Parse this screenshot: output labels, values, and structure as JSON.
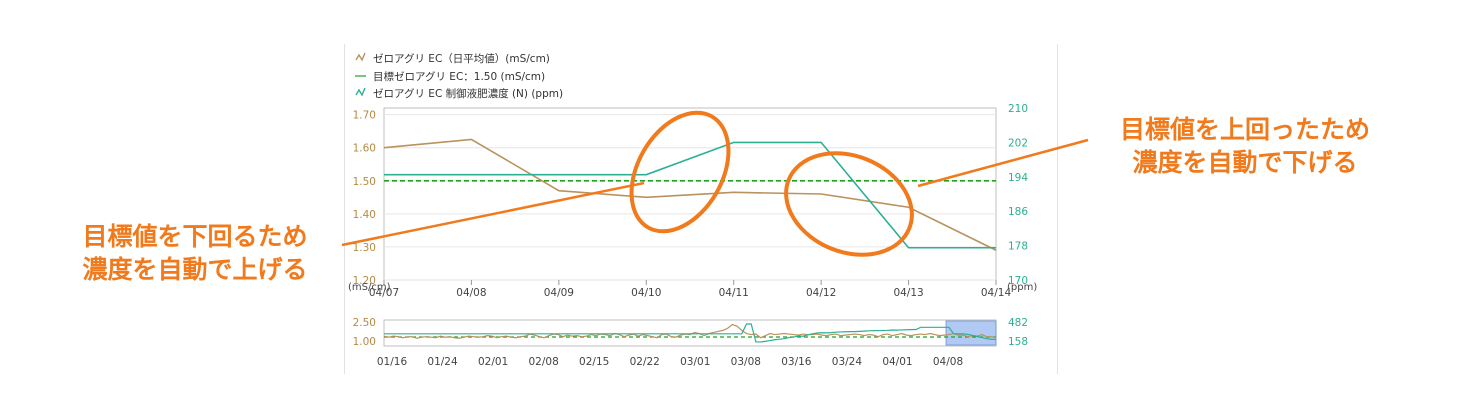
{
  "colors": {
    "ec_daily": "#b9925e",
    "target": "#22a022",
    "control": "#2bb093",
    "left_axis_text": "#b58a46",
    "right_axis_text": "#2bb093",
    "annotation": "#f07a1c",
    "navigator_band": "#8fb3ee"
  },
  "legend": {
    "items": [
      {
        "label": "ゼロアグリ EC（日平均値）(mS/cm)",
        "icon": "line-chart-icon",
        "color": "#b9925e"
      },
      {
        "label": "目標ゼロアグリ EC：1.50 (mS/cm)",
        "icon": "dashed-line-icon",
        "color": "#22a022"
      },
      {
        "label": "ゼロアグリ EC 制御液肥濃度 (N) (ppm)",
        "icon": "line-chart-icon",
        "color": "#2bb093"
      }
    ]
  },
  "annotations": {
    "left_line1": "目標値を下回るため",
    "left_line2": "濃度を自動で上げる",
    "right_line1": "目標値を上回ったため",
    "right_line2": "濃度を自動で下げる"
  },
  "chart_data": [
    {
      "type": "line",
      "x": [
        "04/07",
        "04/08",
        "04/09",
        "04/10",
        "04/11",
        "04/12",
        "04/13",
        "04/14"
      ],
      "y_left": {
        "label": "(mS/cm)",
        "ticks": [
          "1.20",
          "1.30",
          "1.40",
          "1.50",
          "1.60",
          "1.70"
        ],
        "range": [
          1.2,
          1.72
        ]
      },
      "y_right": {
        "label": "(ppm)",
        "ticks": [
          "170",
          "178",
          "186",
          "194",
          "202",
          "210"
        ],
        "range": [
          170,
          210
        ]
      },
      "series": [
        {
          "name": "ゼロアグリ EC（日平均値）(mS/cm)",
          "axis": "left",
          "points": [
            [
              "04/07",
              1.6
            ],
            [
              "04/08",
              1.625
            ],
            [
              "04/09",
              1.47
            ],
            [
              "04/10",
              1.45
            ],
            [
              "04/11",
              1.465
            ],
            [
              "04/12",
              1.46
            ],
            [
              "04/13",
              1.42
            ],
            [
              "04/14",
              1.29
            ]
          ]
        },
        {
          "name": "目標ゼロアグリ EC：1.50 (mS/cm)",
          "axis": "left",
          "style": "dashed",
          "points": [
            [
              "04/07",
              1.5
            ],
            [
              "04/14",
              1.5
            ]
          ]
        },
        {
          "name": "ゼロアグリ EC 制御液肥濃度 (N) (ppm)",
          "axis": "right",
          "shape": "step",
          "points": [
            [
              "04/07",
              194.5
            ],
            [
              "04/10",
              194.5
            ],
            [
              "04/11",
              202
            ],
            [
              "04/12",
              202
            ],
            [
              "04/13",
              177.5
            ],
            [
              "04/14",
              177.5
            ]
          ]
        }
      ],
      "highlight_ellipses": [
        "around 04/10–04/11 rising segment",
        "around 04/12–04/13 falling segment"
      ]
    },
    {
      "type": "line",
      "role": "navigator",
      "x_ticks": [
        "01/16",
        "01/24",
        "02/01",
        "02/08",
        "02/15",
        "02/22",
        "03/01",
        "03/08",
        "03/16",
        "03/24",
        "04/01",
        "04/08"
      ],
      "y_left_ticks": [
        "1.00",
        "2.50"
      ],
      "y_right_ticks": [
        "158",
        "482"
      ],
      "selected_range": [
        "04/07",
        "04/14"
      ],
      "series": [
        {
          "name": "ゼロアグリ EC（日平均値）(mS/cm)",
          "axis": "left",
          "values": [
            1.35,
            1.25,
            1.35,
            1.3,
            1.2,
            1.28,
            1.3,
            1.15,
            1.25,
            1.3,
            1.25,
            1.2,
            1.35,
            1.25,
            1.3,
            1.2,
            1.15,
            1.25,
            1.35,
            1.3,
            1.25,
            1.3,
            1.4,
            1.35,
            1.2,
            1.3,
            1.35,
            1.25,
            1.2,
            1.3,
            1.35,
            1.55,
            1.45,
            1.3,
            1.2,
            1.4,
            1.55,
            1.5,
            1.3,
            1.45,
            1.35,
            1.4,
            1.3,
            1.35,
            1.5,
            1.4,
            1.55,
            1.5,
            1.4,
            1.6,
            1.5,
            1.3,
            1.45,
            1.55,
            1.35,
            1.5,
            1.4,
            1.3,
            1.2,
            1.5,
            1.55,
            1.3,
            1.25,
            1.45,
            1.55,
            1.5,
            1.7,
            1.6,
            1.4,
            1.6,
            1.7,
            1.8,
            1.9,
            2.1,
            2.45,
            2.3,
            1.9,
            1.6,
            1.5,
            1.55,
            1.2,
            1.4,
            1.6,
            1.5,
            1.55,
            1.6,
            1.55,
            1.5,
            1.45,
            1.55,
            1.5,
            1.5,
            1.55,
            1.45,
            1.4,
            1.5,
            1.55,
            1.4,
            1.45,
            1.5,
            1.55,
            1.5,
            1.4,
            1.5,
            1.45,
            1.3,
            1.5,
            1.55,
            1.4,
            1.5,
            1.6,
            1.45,
            1.4,
            1.5,
            1.55,
            1.5,
            1.6,
            1.5,
            1.4,
            1.45,
            1.5,
            1.6,
            1.45,
            1.45,
            1.3,
            1.4,
            1.35,
            1.5,
            1.3,
            1.3,
            1.2
          ]
        },
        {
          "name": "ゼロアグリ EC 制御液肥濃度 (N) (ppm)",
          "axis": "right",
          "shape": "step",
          "values": [
            300,
            300,
            300,
            300,
            300,
            300,
            300,
            300,
            300,
            300,
            300,
            300,
            300,
            300,
            300,
            300,
            300,
            300,
            300,
            300,
            300,
            300,
            300,
            300,
            300,
            300,
            300,
            300,
            300,
            300,
            300,
            300,
            300,
            300,
            300,
            300,
            300,
            300,
            300,
            300,
            300,
            300,
            300,
            300,
            300,
            300,
            300,
            300,
            300,
            300,
            300,
            300,
            300,
            300,
            300,
            300,
            300,
            300,
            300,
            300,
            300,
            300,
            300,
            300,
            300,
            300,
            300,
            300,
            300,
            300,
            300,
            300,
            300,
            300,
            300,
            300,
            300,
            482,
            482,
            150,
            150,
            160,
            175,
            190,
            200,
            210,
            230,
            240,
            260,
            255,
            280,
            300,
            315,
            320,
            318,
            322,
            330,
            335,
            338,
            340,
            340,
            345,
            350,
            355,
            360,
            358,
            362,
            365,
            370,
            368,
            372,
            375,
            378,
            380,
            420,
            420,
            420,
            420,
            420,
            420,
            420,
            300,
            300,
            300,
            290,
            270,
            250,
            230,
            210,
            200,
            195
          ]
        }
      ]
    }
  ]
}
